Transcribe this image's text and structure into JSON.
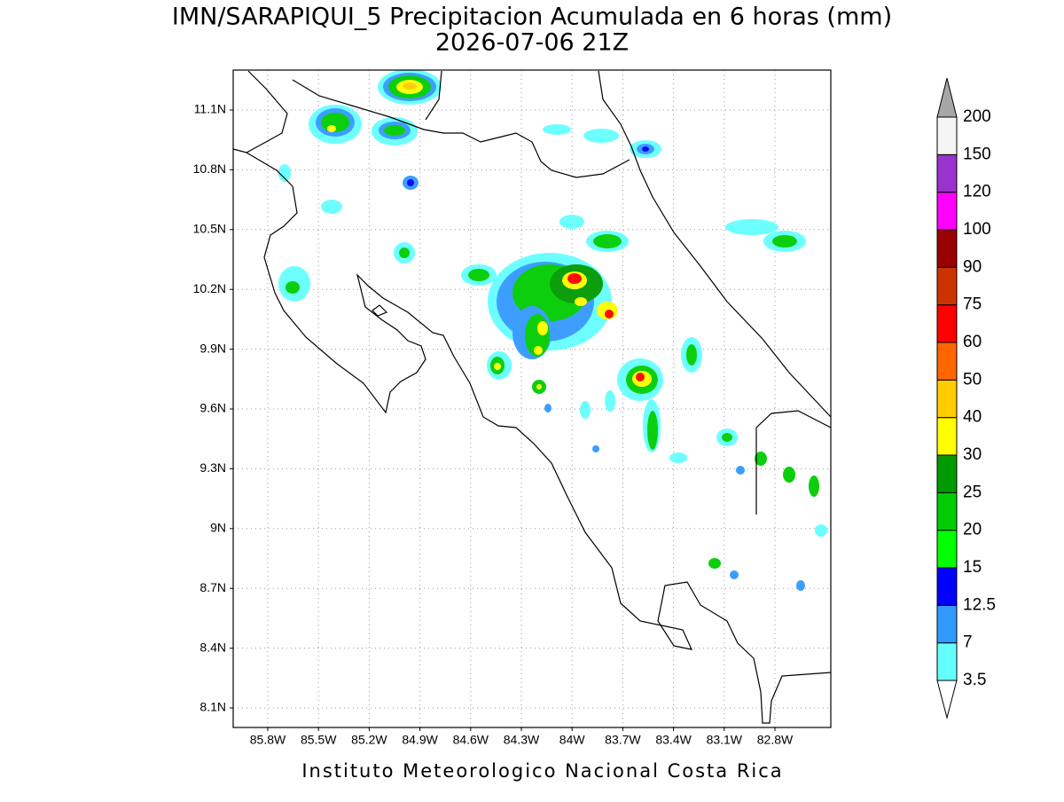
{
  "title": "IMN/SARAPIQUI_5 Precipitacion Acumulada en 6 horas (mm)",
  "subtitle": "2026-07-06 21Z",
  "lat_labels": [
    "11.1N",
    "10.8N",
    "10.5N",
    "10.2N",
    "9.9N",
    "9.6N",
    "9.3N",
    "9N",
    "8.7N",
    "8.4N",
    "8.1N"
  ],
  "lon_labels": [
    "85.8W",
    "85.5W",
    "85.2W",
    "84.9W",
    "84.6W",
    "84.3W",
    "84W",
    "83.7W",
    "83.4W",
    "83.1W",
    "82.8W"
  ],
  "colorbar": {
    "levels": [
      3.5,
      7,
      12.5,
      15,
      20,
      25,
      30,
      40,
      50,
      60,
      75,
      90,
      100,
      120,
      150,
      200
    ],
    "colors": [
      "#66ffff",
      "#3399ff",
      "#0000ff",
      "#00ff00",
      "#00cc00",
      "#009900",
      "#ffff00",
      "#ffcc00",
      "#ff6600",
      "#ff0000",
      "#cc3300",
      "#990000",
      "#ff00ff",
      "#9933cc",
      "#f5f5f5"
    ]
  },
  "footer": "Instituto Meteorologico Nacional Costa Rica"
}
